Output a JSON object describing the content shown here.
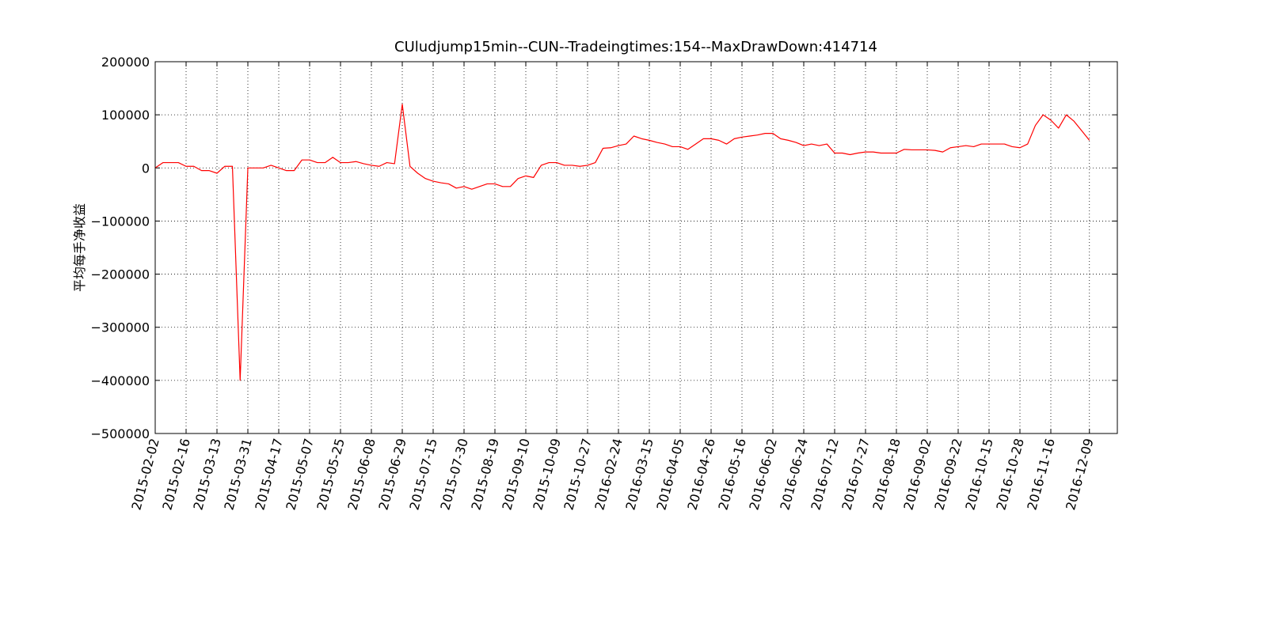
{
  "chart_data": {
    "type": "line",
    "title": "CUludjump15min--CUN--Tradeingtimes:154--MaxDrawDown:414714",
    "y_label": "平均每手净收益",
    "color": "#ff0000",
    "grid": true,
    "ylim": [
      -500000,
      200000
    ],
    "yticks": [
      {
        "value": -500000,
        "label": "−500000"
      },
      {
        "value": -400000,
        "label": "−400000"
      },
      {
        "value": -300000,
        "label": "−300000"
      },
      {
        "value": -200000,
        "label": "−200000"
      },
      {
        "value": -100000,
        "label": "−100000"
      },
      0,
      100000,
      200000
    ],
    "categories": [
      "2015-02-02",
      null,
      null,
      null,
      "2015-02-16",
      null,
      null,
      null,
      "2015-03-13",
      null,
      null,
      null,
      "2015-03-31",
      null,
      null,
      null,
      "2015-04-17",
      null,
      null,
      null,
      "2015-05-07",
      null,
      null,
      null,
      "2015-05-25",
      null,
      null,
      null,
      "2015-06-08",
      null,
      null,
      null,
      "2015-06-29",
      null,
      null,
      null,
      "2015-07-15",
      null,
      null,
      null,
      "2015-07-30",
      null,
      null,
      null,
      "2015-08-19",
      null,
      null,
      null,
      "2015-09-10",
      null,
      null,
      null,
      "2015-10-09",
      null,
      null,
      null,
      "2015-10-27",
      null,
      null,
      null,
      "2016-02-24",
      null,
      null,
      null,
      "2016-03-15",
      null,
      null,
      null,
      "2016-04-05",
      null,
      null,
      null,
      "2016-04-26",
      null,
      null,
      null,
      "2016-05-16",
      null,
      null,
      null,
      "2016-06-02",
      null,
      null,
      null,
      "2016-06-24",
      null,
      null,
      null,
      "2016-07-12",
      null,
      null,
      null,
      "2016-07-27",
      null,
      null,
      null,
      "2016-08-18",
      null,
      null,
      null,
      "2016-09-02",
      null,
      null,
      null,
      "2016-09-22",
      null,
      null,
      null,
      "2016-10-15",
      null,
      null,
      null,
      "2016-10-28",
      null,
      null,
      null,
      "2016-11-16",
      null,
      null,
      null,
      null,
      "2016-12-09"
    ],
    "values": [
      0,
      10000,
      10000,
      10000,
      3000,
      3000,
      -5000,
      -5000,
      -10000,
      3000,
      3000,
      -400000,
      0,
      0,
      0,
      5000,
      0,
      -5000,
      -5000,
      15000,
      15000,
      10000,
      10000,
      20000,
      10000,
      10000,
      12000,
      8000,
      5000,
      3000,
      10000,
      8000,
      120000,
      3000,
      -10000,
      -20000,
      -25000,
      -28000,
      -30000,
      -38000,
      -35000,
      -40000,
      -35000,
      -30000,
      -30000,
      -35000,
      -35000,
      -20000,
      -15000,
      -18000,
      5000,
      10000,
      10000,
      5000,
      5000,
      3000,
      5000,
      10000,
      37000,
      38000,
      42000,
      45000,
      60000,
      55000,
      52000,
      48000,
      45000,
      40000,
      40000,
      35000,
      45000,
      55000,
      55000,
      52000,
      45000,
      55000,
      58000,
      60000,
      62000,
      65000,
      65000,
      55000,
      52000,
      48000,
      42000,
      45000,
      42000,
      45000,
      28000,
      28000,
      25000,
      28000,
      30000,
      30000,
      28000,
      28000,
      28000,
      35000,
      34000,
      34000,
      34000,
      33000,
      30000,
      38000,
      40000,
      42000,
      40000,
      45000,
      45000,
      45000,
      45000,
      40000,
      38000,
      45000,
      80000,
      100000,
      90000,
      75000,
      100000,
      88000,
      70000,
      52000
    ]
  }
}
